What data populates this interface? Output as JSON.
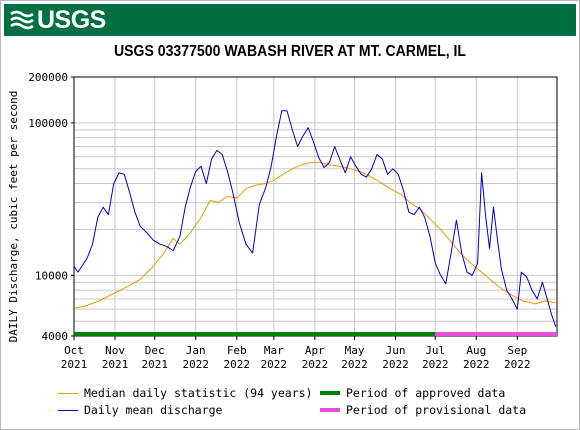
{
  "header": {
    "logo_text": "USGS",
    "banner_color": "#006f41"
  },
  "title": "USGS 03377500 WABASH RIVER AT MT. CARMEL, IL",
  "legend": {
    "median": "Median daily statistic (94 years)",
    "daily": "Daily mean discharge",
    "approved": "Period of approved data",
    "provisional": "Period of provisional data"
  },
  "chart_data": {
    "type": "line",
    "title": "USGS 03377500 WABASH RIVER AT MT. CARMEL, IL",
    "xlabel": "",
    "ylabel": "DAILY Discharge, cubic feet per second",
    "y_scale": "log",
    "ylim": [
      4000,
      200000
    ],
    "y_ticks": [
      4000,
      10000,
      100000,
      200000
    ],
    "y_tick_labels": [
      "4000",
      "10000",
      "100000",
      "200000"
    ],
    "xlim": [
      "2021-10-01",
      "2022-09-30"
    ],
    "x_ticks": [
      {
        "date": "2021-10-01",
        "label": [
          "Oct",
          "2021"
        ]
      },
      {
        "date": "2021-11-01",
        "label": [
          "Nov",
          "2021"
        ]
      },
      {
        "date": "2021-12-01",
        "label": [
          "Dec",
          "2021"
        ]
      },
      {
        "date": "2022-01-01",
        "label": [
          "Jan",
          "2022"
        ]
      },
      {
        "date": "2022-02-01",
        "label": [
          "Feb",
          "2022"
        ]
      },
      {
        "date": "2022-03-01",
        "label": [
          "Mar",
          "2022"
        ]
      },
      {
        "date": "2022-04-01",
        "label": [
          "Apr",
          "2022"
        ]
      },
      {
        "date": "2022-05-01",
        "label": [
          "May",
          "2022"
        ]
      },
      {
        "date": "2022-06-01",
        "label": [
          "Jun",
          "2022"
        ]
      },
      {
        "date": "2022-07-01",
        "label": [
          "Jul",
          "2022"
        ]
      },
      {
        "date": "2022-08-01",
        "label": [
          "Aug",
          "2022"
        ]
      },
      {
        "date": "2022-09-01",
        "label": [
          "Sep",
          "2022"
        ]
      }
    ],
    "grid": true,
    "legend_position": "bottom",
    "series": [
      {
        "name": "Median daily statistic (94 years)",
        "color": "#e69b00",
        "points": [
          [
            "2021-10-01",
            6100
          ],
          [
            "2021-10-10",
            6300
          ],
          [
            "2021-10-20",
            6800
          ],
          [
            "2021-10-31",
            7600
          ],
          [
            "2021-11-10",
            8400
          ],
          [
            "2021-11-20",
            9400
          ],
          [
            "2021-11-30",
            11500
          ],
          [
            "2021-12-08",
            14000
          ],
          [
            "2021-12-15",
            17500
          ],
          [
            "2021-12-20",
            16000
          ],
          [
            "2021-12-28",
            19000
          ],
          [
            "2022-01-05",
            24000
          ],
          [
            "2022-01-12",
            31000
          ],
          [
            "2022-01-18",
            30000
          ],
          [
            "2022-01-25",
            33000
          ],
          [
            "2022-02-01",
            32000
          ],
          [
            "2022-02-08",
            37000
          ],
          [
            "2022-02-15",
            39000
          ],
          [
            "2022-02-22",
            40000
          ],
          [
            "2022-03-01",
            42000
          ],
          [
            "2022-03-08",
            46000
          ],
          [
            "2022-03-15",
            50000
          ],
          [
            "2022-03-22",
            53000
          ],
          [
            "2022-03-29",
            55000
          ],
          [
            "2022-04-05",
            55000
          ],
          [
            "2022-04-12",
            53000
          ],
          [
            "2022-04-20",
            52000
          ],
          [
            "2022-04-28",
            50000
          ],
          [
            "2022-05-05",
            48000
          ],
          [
            "2022-05-12",
            45000
          ],
          [
            "2022-05-20",
            41000
          ],
          [
            "2022-05-28",
            37000
          ],
          [
            "2022-06-05",
            34000
          ],
          [
            "2022-06-12",
            30000
          ],
          [
            "2022-06-20",
            27000
          ],
          [
            "2022-06-28",
            23000
          ],
          [
            "2022-07-05",
            20000
          ],
          [
            "2022-07-12",
            17000
          ],
          [
            "2022-07-20",
            14000
          ],
          [
            "2022-07-28",
            12000
          ],
          [
            "2022-08-05",
            10500
          ],
          [
            "2022-08-12",
            9300
          ],
          [
            "2022-08-20",
            8200
          ],
          [
            "2022-08-28",
            7400
          ],
          [
            "2022-09-05",
            6800
          ],
          [
            "2022-09-15",
            6500
          ],
          [
            "2022-09-22",
            6800
          ],
          [
            "2022-09-30",
            6600
          ]
        ]
      },
      {
        "name": "Daily mean discharge",
        "color": "#0000c8",
        "points": [
          [
            "2021-10-01",
            11500
          ],
          [
            "2021-10-04",
            10500
          ],
          [
            "2021-10-07",
            11500
          ],
          [
            "2021-10-11",
            13000
          ],
          [
            "2021-10-15",
            16000
          ],
          [
            "2021-10-19",
            24000
          ],
          [
            "2021-10-23",
            28000
          ],
          [
            "2021-10-27",
            25000
          ],
          [
            "2021-10-31",
            40000
          ],
          [
            "2021-11-04",
            47000
          ],
          [
            "2021-11-08",
            46000
          ],
          [
            "2021-11-12",
            35000
          ],
          [
            "2021-11-16",
            26000
          ],
          [
            "2021-11-20",
            21000
          ],
          [
            "2021-11-25",
            19000
          ],
          [
            "2021-11-30",
            17000
          ],
          [
            "2021-12-05",
            16000
          ],
          [
            "2021-12-10",
            15500
          ],
          [
            "2021-12-15",
            14500
          ],
          [
            "2021-12-20",
            18000
          ],
          [
            "2021-12-24",
            28000
          ],
          [
            "2021-12-28",
            38000
          ],
          [
            "2022-01-01",
            48000
          ],
          [
            "2022-01-05",
            52000
          ],
          [
            "2022-01-09",
            40000
          ],
          [
            "2022-01-13",
            58000
          ],
          [
            "2022-01-17",
            66000
          ],
          [
            "2022-01-21",
            62000
          ],
          [
            "2022-01-25",
            48000
          ],
          [
            "2022-01-29",
            35000
          ],
          [
            "2022-02-03",
            22000
          ],
          [
            "2022-02-08",
            16000
          ],
          [
            "2022-02-13",
            14000
          ],
          [
            "2022-02-18",
            29000
          ],
          [
            "2022-02-23",
            38000
          ],
          [
            "2022-02-27",
            52000
          ],
          [
            "2022-03-03",
            82000
          ],
          [
            "2022-03-07",
            120000
          ],
          [
            "2022-03-11",
            120000
          ],
          [
            "2022-03-15",
            90000
          ],
          [
            "2022-03-19",
            70000
          ],
          [
            "2022-03-23",
            82000
          ],
          [
            "2022-03-27",
            93000
          ],
          [
            "2022-03-31",
            75000
          ],
          [
            "2022-04-04",
            59000
          ],
          [
            "2022-04-08",
            51000
          ],
          [
            "2022-04-12",
            55000
          ],
          [
            "2022-04-16",
            70000
          ],
          [
            "2022-04-20",
            57000
          ],
          [
            "2022-04-24",
            47000
          ],
          [
            "2022-04-28",
            60000
          ],
          [
            "2022-05-02",
            52000
          ],
          [
            "2022-05-06",
            46000
          ],
          [
            "2022-05-10",
            44000
          ],
          [
            "2022-05-14",
            50000
          ],
          [
            "2022-05-18",
            62000
          ],
          [
            "2022-05-22",
            58000
          ],
          [
            "2022-05-26",
            46000
          ],
          [
            "2022-05-30",
            50000
          ],
          [
            "2022-06-03",
            46000
          ],
          [
            "2022-06-07",
            36000
          ],
          [
            "2022-06-11",
            26000
          ],
          [
            "2022-06-15",
            25000
          ],
          [
            "2022-06-19",
            28000
          ],
          [
            "2022-06-23",
            24000
          ],
          [
            "2022-06-27",
            18000
          ],
          [
            "2022-07-01",
            12000
          ],
          [
            "2022-07-05",
            10000
          ],
          [
            "2022-07-09",
            8800
          ],
          [
            "2022-07-13",
            14000
          ],
          [
            "2022-07-17",
            23000
          ],
          [
            "2022-07-21",
            14000
          ],
          [
            "2022-07-25",
            10500
          ],
          [
            "2022-07-29",
            10000
          ],
          [
            "2022-08-02",
            12000
          ],
          [
            "2022-08-05",
            47000
          ],
          [
            "2022-08-08",
            25000
          ],
          [
            "2022-08-11",
            15000
          ],
          [
            "2022-08-14",
            28000
          ],
          [
            "2022-08-17",
            17000
          ],
          [
            "2022-08-20",
            11000
          ],
          [
            "2022-08-24",
            8000
          ],
          [
            "2022-08-28",
            7000
          ],
          [
            "2022-09-01",
            6000
          ],
          [
            "2022-09-04",
            10500
          ],
          [
            "2022-09-08",
            9800
          ],
          [
            "2022-09-12",
            8000
          ],
          [
            "2022-09-16",
            7000
          ],
          [
            "2022-09-20",
            9000
          ],
          [
            "2022-09-24",
            6800
          ],
          [
            "2022-09-27",
            5500
          ],
          [
            "2022-09-30",
            4600
          ]
        ]
      }
    ],
    "data_periods": [
      {
        "name": "Period of approved data",
        "color": "#008000",
        "start": "2021-10-01",
        "end": "2022-06-30"
      },
      {
        "name": "Period of provisional data",
        "color": "#e350d7",
        "start": "2022-07-01",
        "end": "2022-09-30"
      }
    ]
  }
}
